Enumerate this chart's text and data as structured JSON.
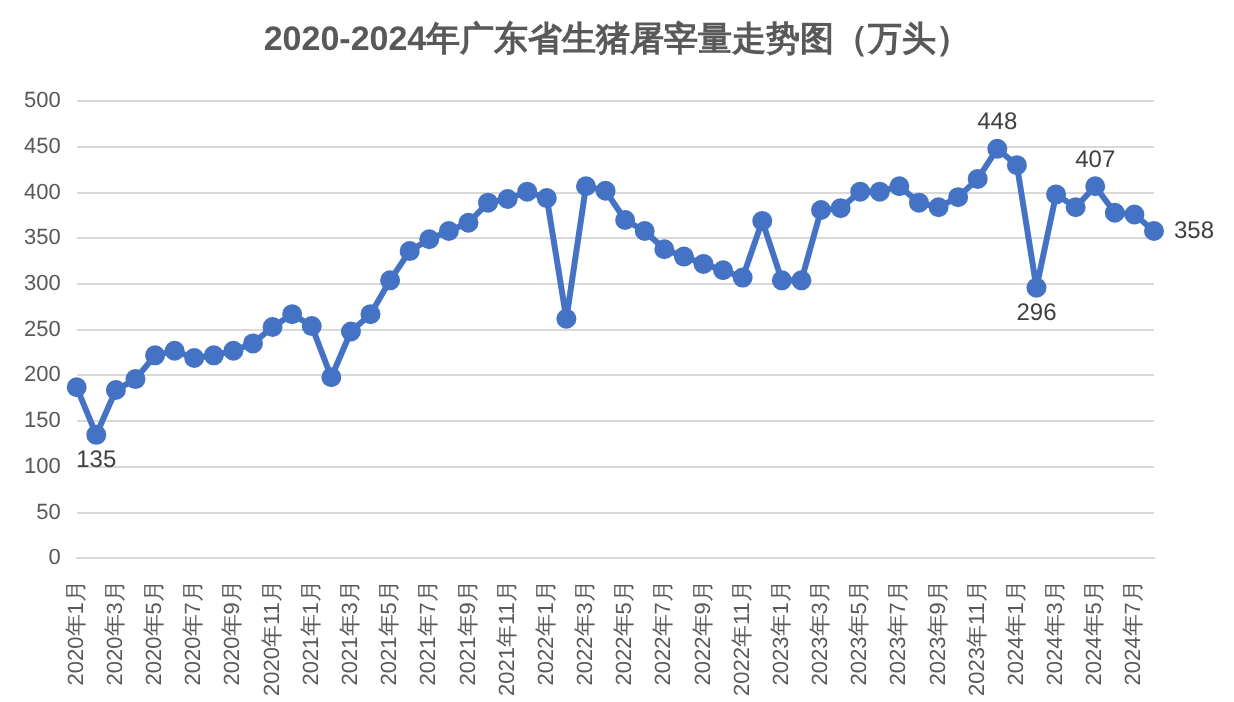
{
  "chart_data": {
    "type": "line",
    "title": "2020-2024年广东省生猪屠宰量走势图（万头）",
    "categories": [
      "2020年1月",
      null,
      "2020年3月",
      null,
      "2020年5月",
      null,
      "2020年7月",
      null,
      "2020年9月",
      null,
      "2020年11月",
      null,
      "2021年1月",
      null,
      "2021年3月",
      null,
      "2021年5月",
      null,
      "2021年7月",
      null,
      "2021年9月",
      null,
      "2021年11月",
      null,
      "2022年1月",
      null,
      "2022年3月",
      null,
      "2022年5月",
      null,
      "2022年7月",
      null,
      "2022年9月",
      null,
      "2022年11月",
      null,
      "2023年1月",
      null,
      "2023年3月",
      null,
      "2023年5月",
      null,
      "2023年7月",
      null,
      "2023年9月",
      null,
      "2023年11月",
      null,
      "2024年1月",
      null,
      "2024年3月",
      null,
      "2024年5月",
      null,
      "2024年7月",
      null
    ],
    "series": [
      {
        "color": "#4472c4",
        "values": [
          187,
          135,
          184,
          196,
          222,
          227,
          219,
          222,
          227,
          235,
          253,
          267,
          254,
          198,
          248,
          267,
          304,
          336,
          349,
          358,
          367,
          389,
          393,
          401,
          394,
          262,
          407,
          402,
          370,
          358,
          338,
          330,
          322,
          315,
          307,
          369,
          304,
          304,
          381,
          383,
          401,
          401,
          407,
          389,
          384,
          395,
          415,
          448,
          430,
          296,
          398,
          384,
          407,
          378,
          376,
          358
        ],
        "value_labels": [
          null,
          "135",
          null,
          null,
          null,
          null,
          null,
          null,
          null,
          null,
          null,
          null,
          null,
          null,
          null,
          null,
          null,
          null,
          null,
          null,
          null,
          null,
          null,
          null,
          null,
          null,
          null,
          null,
          null,
          null,
          null,
          null,
          null,
          null,
          null,
          null,
          null,
          null,
          null,
          null,
          null,
          null,
          null,
          null,
          null,
          null,
          null,
          "448",
          null,
          "296",
          null,
          null,
          "407",
          null,
          null,
          "358"
        ]
      }
    ],
    "ylim": [
      0,
      500
    ],
    "yticks": [
      0,
      50,
      100,
      150,
      200,
      250,
      300,
      350,
      400,
      450,
      500
    ],
    "grid": "y",
    "legend": false,
    "marker": "circle",
    "line_style": "solid"
  }
}
